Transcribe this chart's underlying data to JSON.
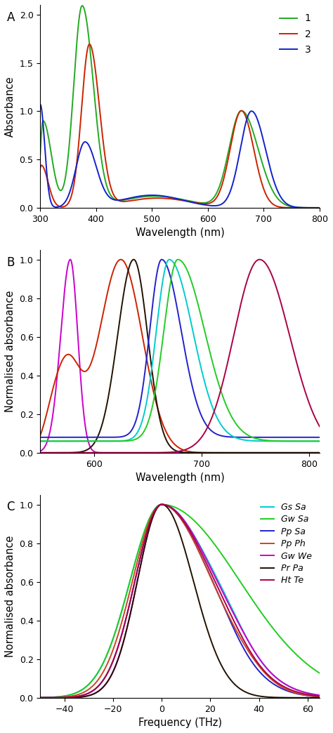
{
  "panel_A": {
    "label": "A",
    "xlabel": "Wavelength (nm)",
    "ylabel": "Absorbance",
    "xlim": [
      300,
      800
    ],
    "ylim": [
      0.0,
      2.1
    ],
    "yticks": [
      0.0,
      0.5,
      1.0,
      1.5,
      2.0
    ],
    "xticks": [
      300,
      400,
      500,
      600,
      700,
      800
    ],
    "curves": [
      {
        "color": "#22aa22",
        "label": "1"
      },
      {
        "color": "#cc2200",
        "label": "2"
      },
      {
        "color": "#1122cc",
        "label": "3"
      }
    ]
  },
  "panel_B": {
    "label": "B",
    "xlabel": "Wavelength (nm)",
    "ylabel": "Normalised absorbance",
    "xlim": [
      550,
      810
    ],
    "ylim": [
      0.0,
      1.05
    ],
    "yticks": [
      0.0,
      0.2,
      0.4,
      0.6,
      0.8,
      1.0
    ],
    "xticks": [
      600,
      700,
      800
    ],
    "colors": [
      "#00cccc",
      "#22cc22",
      "#2222cc",
      "#cc2200",
      "#cc00cc",
      "#221100",
      "#aa0044"
    ]
  },
  "panel_C": {
    "label": "C",
    "xlabel": "Frequency (THz)",
    "ylabel": "Normalised absorbance",
    "xlim": [
      -50,
      65
    ],
    "ylim": [
      0.0,
      1.05
    ],
    "yticks": [
      0.0,
      0.2,
      0.4,
      0.6,
      0.8,
      1.0
    ],
    "xticks": [
      -40,
      -20,
      0,
      20,
      40,
      60
    ],
    "legend": [
      {
        "label": "Gs Sa",
        "color": "#00cccc"
      },
      {
        "label": "Gw Sa",
        "color": "#22cc22"
      },
      {
        "label": "Pp Sa",
        "color": "#2222cc"
      },
      {
        "label": "Pp Ph",
        "color": "#cc4422"
      },
      {
        "label": "Gw We",
        "color": "#cc00cc"
      },
      {
        "label": "Pr Pa",
        "color": "#221100"
      },
      {
        "label": "Ht Te",
        "color": "#aa0044"
      }
    ]
  }
}
